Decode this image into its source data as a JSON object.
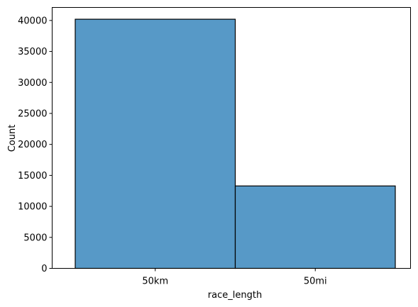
{
  "chart_data": {
    "type": "bar",
    "categories": [
      "50km",
      "50mi"
    ],
    "values": [
      40200,
      13300
    ],
    "xlabel": "race_length",
    "ylabel": "Count",
    "ylim": [
      0,
      42100
    ],
    "yticks": [
      0,
      5000,
      10000,
      15000,
      20000,
      25000,
      30000,
      35000,
      40000
    ],
    "ytick_labels": [
      "0",
      "5000",
      "10000",
      "15000",
      "20000",
      "25000",
      "30000",
      "35000",
      "40000"
    ],
    "grid": false,
    "legend": "none",
    "bar_color": "#5799c7",
    "edge_color": "#000000"
  }
}
